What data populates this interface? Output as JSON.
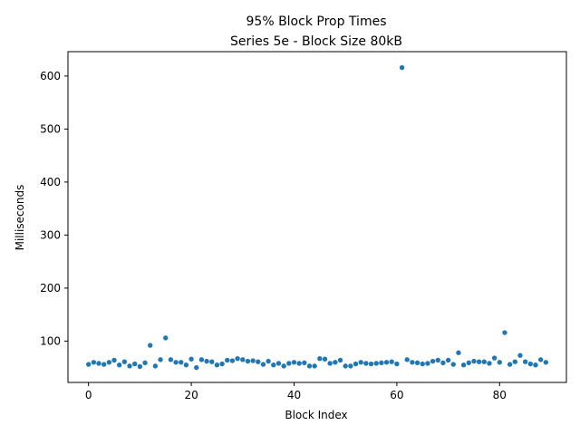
{
  "chart_data": {
    "type": "scatter",
    "title": "95% Block Prop Times",
    "subtitle": "Series 5e - Block Size 80kB",
    "xlabel": "Block Index",
    "ylabel": "Milliseconds",
    "xlim": [
      -4,
      93
    ],
    "ylim": [
      22,
      646
    ],
    "xticks": [
      0,
      20,
      40,
      60,
      80
    ],
    "yticks": [
      100,
      200,
      300,
      400,
      500,
      600
    ],
    "grid": false,
    "legend": "none",
    "marker_color": "#1f77b4",
    "series": [
      {
        "x": [
          0,
          1,
          2,
          3,
          4,
          5,
          6,
          7,
          8,
          9,
          10,
          11,
          12,
          13,
          14,
          15,
          16,
          17,
          18,
          19,
          20,
          21,
          22,
          23,
          24,
          25,
          26,
          27,
          28,
          29,
          30,
          31,
          32,
          33,
          34,
          35,
          36,
          37,
          38,
          39,
          40,
          41,
          42,
          43,
          44,
          45,
          46,
          47,
          48,
          49,
          50,
          51,
          52,
          53,
          54,
          55,
          56,
          57,
          58,
          59,
          60,
          61,
          62,
          63,
          64,
          65,
          66,
          67,
          68,
          69,
          70,
          71,
          72,
          73,
          74,
          75,
          76,
          77,
          78,
          79,
          80,
          81,
          82,
          83,
          84,
          85,
          86,
          87,
          88,
          89
        ],
        "y": [
          56,
          60,
          58,
          56,
          60,
          64,
          55,
          61,
          53,
          57,
          52,
          59,
          92,
          53,
          65,
          106,
          65,
          60,
          60,
          55,
          66,
          50,
          65,
          62,
          61,
          55,
          57,
          64,
          63,
          67,
          65,
          62,
          63,
          61,
          56,
          62,
          55,
          58,
          53,
          58,
          60,
          58,
          59,
          53,
          53,
          67,
          66,
          58,
          60,
          64,
          53,
          53,
          57,
          60,
          58,
          57,
          58,
          59,
          60,
          61,
          57,
          616,
          65,
          60,
          59,
          57,
          58,
          62,
          64,
          59,
          64,
          56,
          78,
          55,
          59,
          62,
          61,
          61,
          58,
          68,
          60,
          116,
          56,
          61,
          73,
          61,
          57,
          55,
          65,
          60
        ]
      }
    ]
  }
}
